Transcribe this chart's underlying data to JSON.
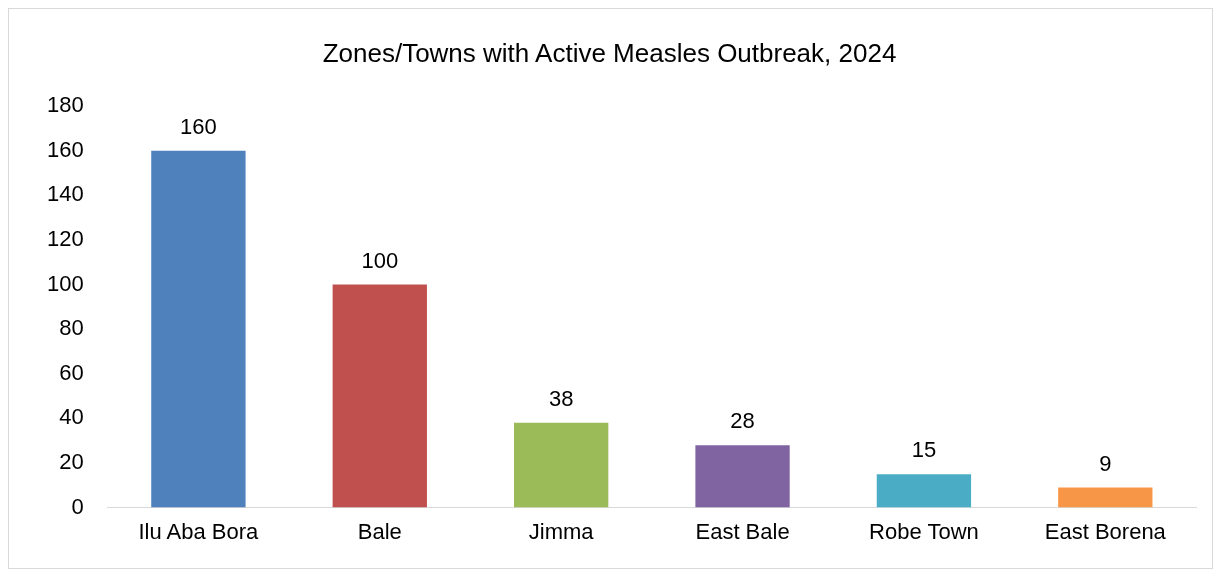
{
  "chart_data": {
    "type": "bar",
    "title": "Zones/Towns with Active Measles Outbreak, 2024",
    "categories": [
      "Ilu Aba Bora",
      "Bale",
      "Jimma",
      "East Bale",
      "Robe Town",
      "East Borena"
    ],
    "values": [
      160,
      100,
      38,
      28,
      15,
      9
    ],
    "colors": [
      "#4f81bd",
      "#c0504d",
      "#9bbb59",
      "#8064a2",
      "#4bacc6",
      "#f79646"
    ],
    "ylim": [
      0,
      180
    ],
    "yticks": [
      0,
      20,
      40,
      60,
      80,
      100,
      120,
      140,
      160,
      180
    ],
    "grid": false,
    "legend": false,
    "data_labels": true
  }
}
